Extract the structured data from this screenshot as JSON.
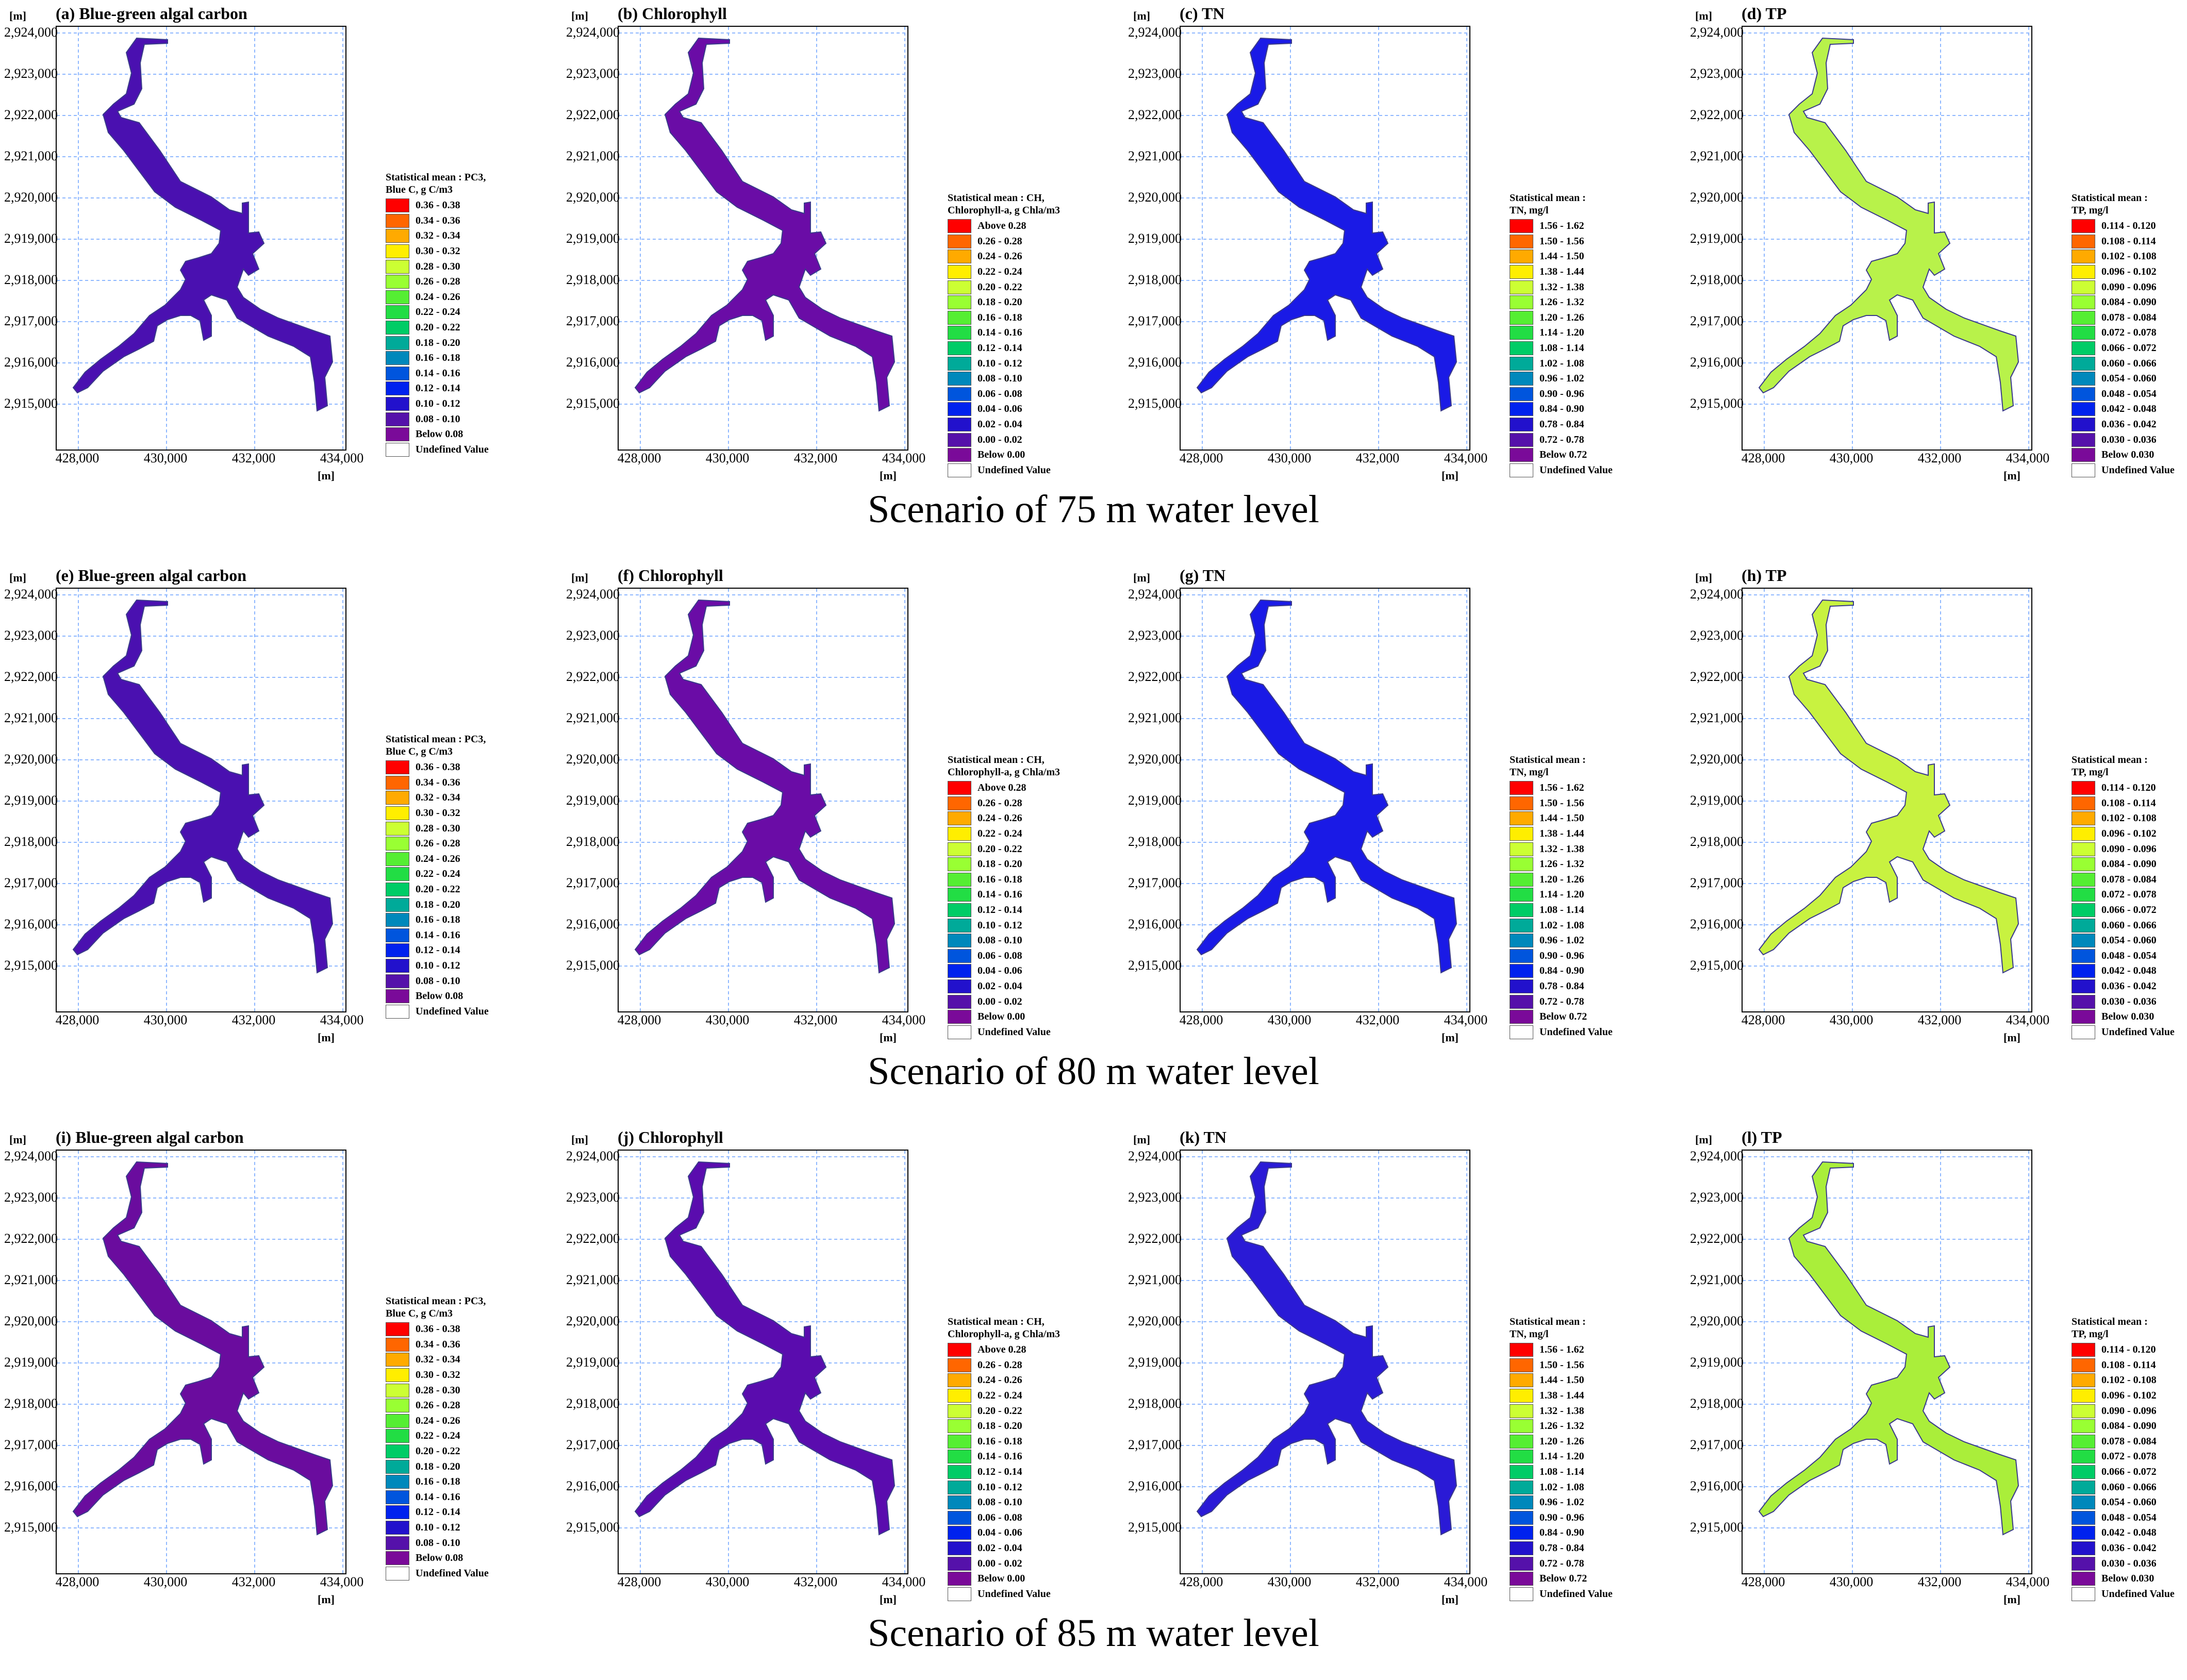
{
  "axes": {
    "unit": "[m]",
    "y_ticks": [
      "2,924,000",
      "2,923,000",
      "2,922,000",
      "2,921,000",
      "2,920,000",
      "2,919,000",
      "2,918,000",
      "2,917,000",
      "2,916,000",
      "2,915,000"
    ],
    "x_ticks": [
      "428,000",
      "430,000",
      "432,000",
      "434,000"
    ]
  },
  "legends": {
    "pc3": {
      "title1": "Statistical mean : PC3,",
      "title2": "Blue C, g C/m3",
      "labels": [
        "0.36 - 0.38",
        "0.34 - 0.36",
        "0.32 - 0.34",
        "0.30 - 0.32",
        "0.28 - 0.30",
        "0.26 - 0.28",
        "0.24 - 0.26",
        "0.22 - 0.24",
        "0.20 - 0.22",
        "0.18 - 0.20",
        "0.16 - 0.18",
        "0.14 - 0.16",
        "0.12 - 0.14",
        "0.10 - 0.12",
        "0.08 - 0.10",
        "Below 0.08",
        "Undefined Value"
      ]
    },
    "ch": {
      "title1": "Statistical mean : CH,",
      "title2": "Chlorophyll-a, g Chla/m3",
      "labels": [
        "Above 0.28",
        "0.26 - 0.28",
        "0.24 - 0.26",
        "0.22 - 0.24",
        "0.20 - 0.22",
        "0.18 - 0.20",
        "0.16 - 0.18",
        "0.14 - 0.16",
        "0.12 - 0.14",
        "0.10 - 0.12",
        "0.08 - 0.10",
        "0.06 - 0.08",
        "0.04 - 0.06",
        "0.02 - 0.04",
        "0.00 - 0.02",
        "Below 0.00",
        "Undefined Value"
      ]
    },
    "tn": {
      "title1": "Statistical mean :",
      "title2": "TN, mg/l",
      "labels": [
        "1.56 - 1.62",
        "1.50 - 1.56",
        "1.44 - 1.50",
        "1.38 - 1.44",
        "1.32 - 1.38",
        "1.26 - 1.32",
        "1.20 - 1.26",
        "1.14 - 1.20",
        "1.08 - 1.14",
        "1.02 - 1.08",
        "0.96 - 1.02",
        "0.90 - 0.96",
        "0.84 - 0.90",
        "0.78 - 0.84",
        "0.72 - 0.78",
        "Below 0.72",
        "Undefined Value"
      ]
    },
    "tp": {
      "title1": "Statistical mean :",
      "title2": "TP, mg/l",
      "labels": [
        "0.114 - 0.120",
        "0.108 - 0.114",
        "0.102 - 0.108",
        "0.096 - 0.102",
        "0.090 - 0.096",
        "0.084 - 0.090",
        "0.078 - 0.084",
        "0.072 - 0.078",
        "0.066 - 0.072",
        "0.060 - 0.066",
        "0.054 - 0.060",
        "0.048 - 0.054",
        "0.042 - 0.048",
        "0.036 - 0.042",
        "0.030 - 0.036",
        "Below 0.030",
        "Undefined Value"
      ]
    },
    "colors": [
      "#ff0000",
      "#ff6600",
      "#ffaa00",
      "#ffee00",
      "#ccff33",
      "#99ff33",
      "#55ee33",
      "#22dd44",
      "#00cc66",
      "#00aa99",
      "#0088bb",
      "#0055dd",
      "#0022ee",
      "#2211cc",
      "#5511aa",
      "#7a0a99",
      "#ffffff"
    ]
  },
  "panels": [
    {
      "title": "(a) Blue-green algal carbon",
      "legend": "pc3",
      "fill": "#4a10b0"
    },
    {
      "title": "(b) Chlorophyll",
      "legend": "ch",
      "fill": "#6a0ca6"
    },
    {
      "title": "(c) TN",
      "legend": "tn",
      "fill": "#1a1ae6"
    },
    {
      "title": "(d) TP",
      "legend": "tp",
      "fill": "#b8f24a"
    },
    {
      "title": "(e) Blue-green algal carbon",
      "legend": "pc3",
      "fill": "#4a10b0"
    },
    {
      "title": "(f) Chlorophyll",
      "legend": "ch",
      "fill": "#6a0ca6"
    },
    {
      "title": "(g) TN",
      "legend": "tn",
      "fill": "#1a1ae6"
    },
    {
      "title": "(h) TP",
      "legend": "tp",
      "fill": "#c8f240"
    },
    {
      "title": "(i) Blue-green algal carbon",
      "legend": "pc3",
      "fill": "#6a0c9e"
    },
    {
      "title": "(j) Chlorophyll",
      "legend": "ch",
      "fill": "#5a0cae"
    },
    {
      "title": "(k) TN",
      "legend": "tn",
      "fill": "#2a1ad6"
    },
    {
      "title": "(l) TP",
      "legend": "tp",
      "fill": "#aaee3a"
    }
  ],
  "scenarios": [
    "Scenario of 75 m water level",
    "Scenario of 80 m water level",
    "Scenario of 85 m water level"
  ]
}
